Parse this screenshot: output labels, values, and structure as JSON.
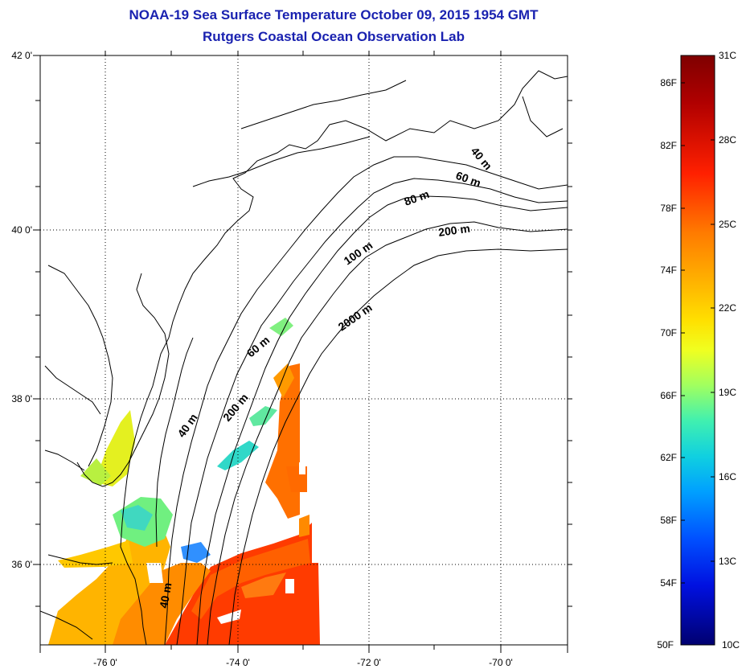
{
  "title": "NOAA-19 Sea Surface Temperature October 09, 2015 1954 GMT",
  "subtitle": "Rutgers Coastal Ocean Observation Lab",
  "map": {
    "lat_labels": [
      "42 0'",
      "40 0'",
      "38 0'",
      "36 0'"
    ],
    "lon_labels": [
      "-76 0'",
      "-74 0'",
      "-72 0'",
      "-70 0'"
    ],
    "isobath_labels": [
      "40 m",
      "60 m",
      "80 m",
      "100 m",
      "200 m",
      "2000 m",
      "60 m",
      "200 m",
      "40 m",
      "40 m"
    ]
  },
  "colorbar": {
    "fahrenheit_labels": [
      "86F",
      "82F",
      "78F",
      "74F",
      "70F",
      "66F",
      "62F",
      "58F",
      "54F",
      "50F"
    ],
    "celsius_labels": [
      "31C",
      "28C",
      "25C",
      "22C",
      "19C",
      "16C",
      "13C",
      "10C"
    ],
    "colors": [
      "#7f0000",
      "#d40000",
      "#ff3a00",
      "#ff8800",
      "#ffc400",
      "#ffff00",
      "#c0ff40",
      "#6dff90",
      "#20e8d0",
      "#00b0ff",
      "#0060ff",
      "#0018e0",
      "#000080"
    ]
  }
}
